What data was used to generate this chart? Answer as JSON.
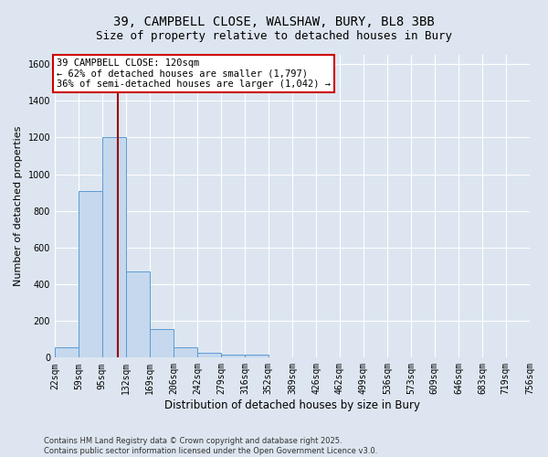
{
  "title_line1": "39, CAMPBELL CLOSE, WALSHAW, BURY, BL8 3BB",
  "title_line2": "Size of property relative to detached houses in Bury",
  "xlabel": "Distribution of detached houses by size in Bury",
  "ylabel": "Number of detached properties",
  "bar_color": "#c5d8ed",
  "bar_edge_color": "#5b9bd5",
  "background_color": "#dde6f0",
  "grid_color": "#ffffff",
  "bins": [
    22,
    59,
    95,
    132,
    169,
    206,
    242,
    279,
    316,
    352,
    389,
    426,
    462,
    499,
    536,
    573,
    609,
    646,
    683,
    719,
    756
  ],
  "bin_labels": [
    "22sqm",
    "59sqm",
    "95sqm",
    "132sqm",
    "169sqm",
    "206sqm",
    "242sqm",
    "279sqm",
    "316sqm",
    "352sqm",
    "389sqm",
    "426sqm",
    "462sqm",
    "499sqm",
    "536sqm",
    "573sqm",
    "609sqm",
    "646sqm",
    "683sqm",
    "719sqm",
    "756sqm"
  ],
  "counts": [
    55,
    910,
    1200,
    470,
    155,
    55,
    25,
    15,
    15,
    0,
    0,
    0,
    0,
    0,
    0,
    0,
    0,
    0,
    0,
    0
  ],
  "red_line_x": 120,
  "annotation_text": "39 CAMPBELL CLOSE: 120sqm\n← 62% of detached houses are smaller (1,797)\n36% of semi-detached houses are larger (1,042) →",
  "annotation_box_color": "#ffffff",
  "annotation_box_edge": "#cc0000",
  "ylim": [
    0,
    1650
  ],
  "yticks": [
    0,
    200,
    400,
    600,
    800,
    1000,
    1200,
    1400,
    1600
  ],
  "footer_text": "Contains HM Land Registry data © Crown copyright and database right 2025.\nContains public sector information licensed under the Open Government Licence v3.0.",
  "title_fontsize": 10,
  "subtitle_fontsize": 9,
  "tick_fontsize": 7,
  "ylabel_fontsize": 8,
  "xlabel_fontsize": 8.5,
  "annotation_fontsize": 7.5
}
